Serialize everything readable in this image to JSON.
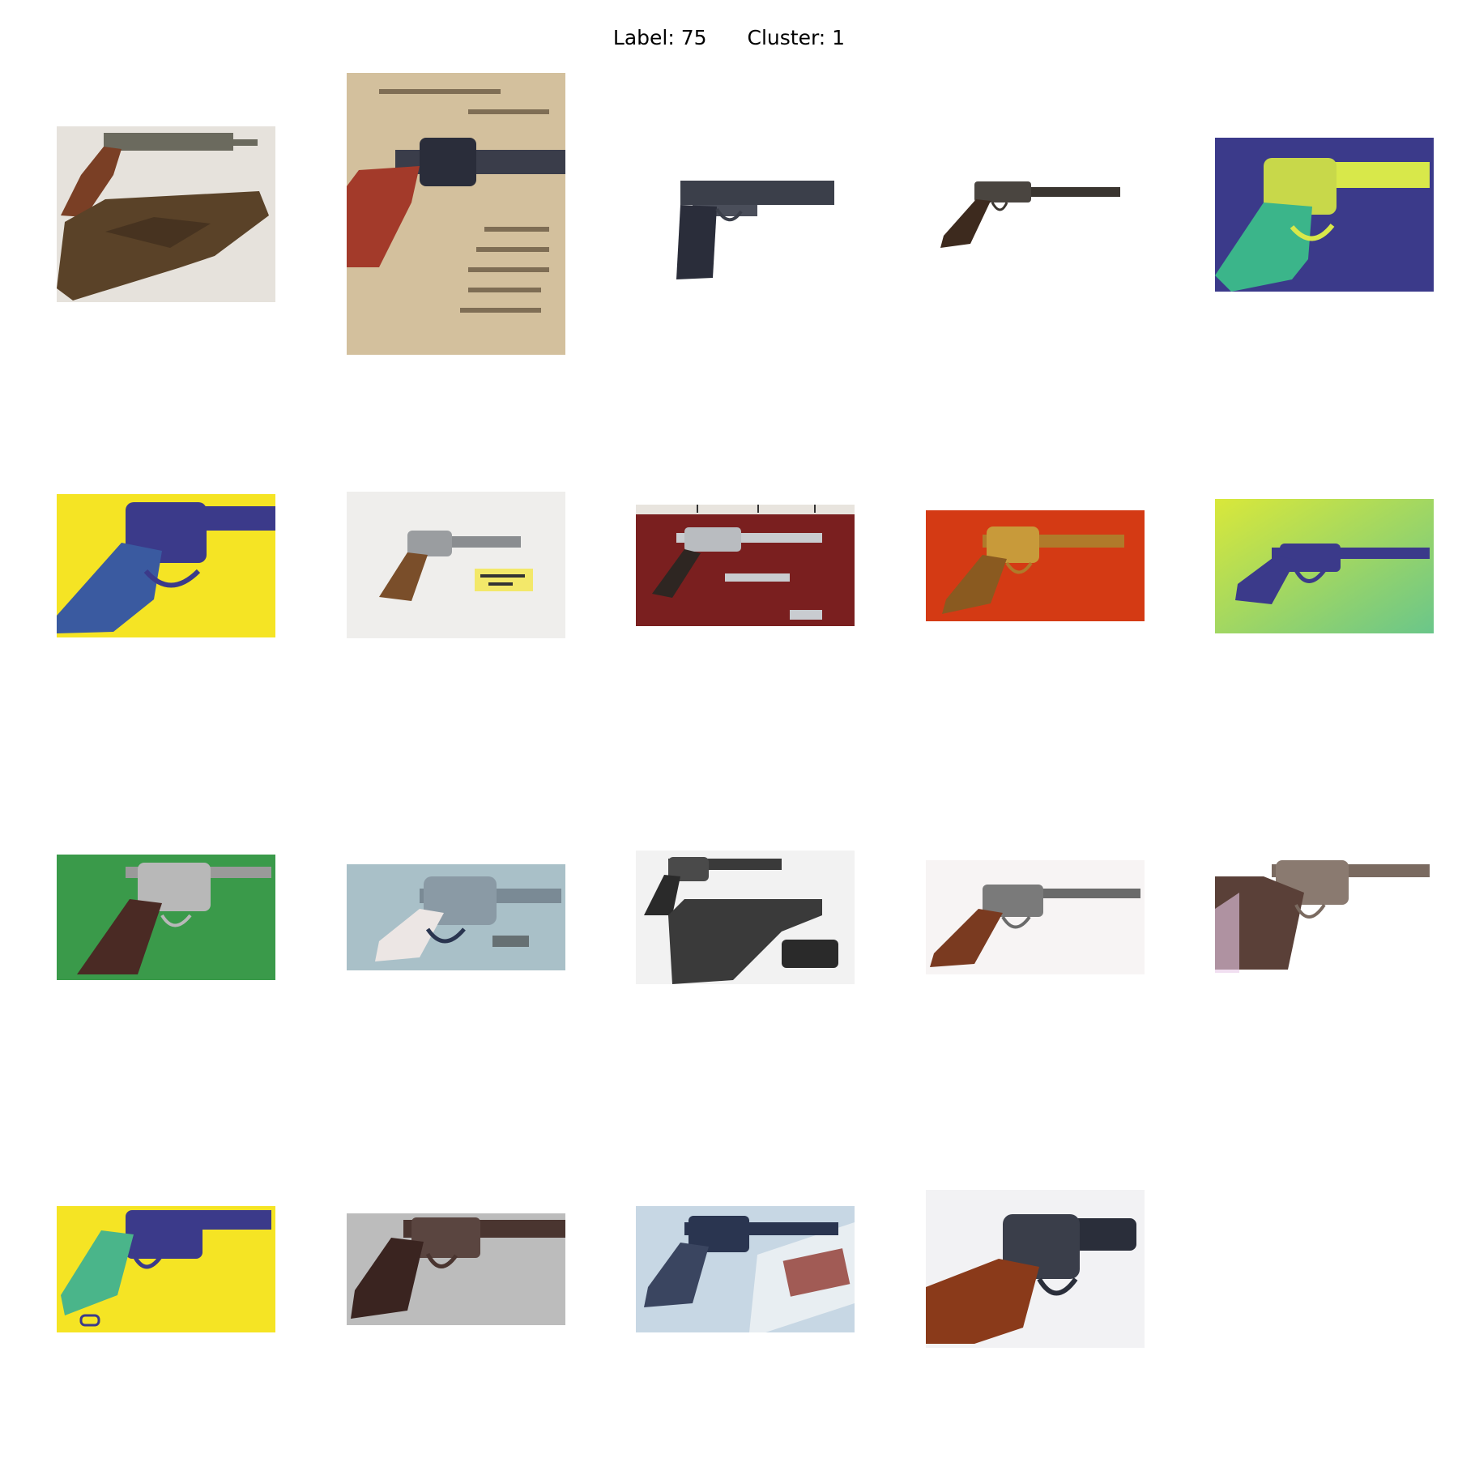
{
  "title": {
    "label_text": "Label: 75",
    "cluster_text": "Cluster: 1"
  },
  "images": [
    {
      "subject": "percussion revolver with leather holster",
      "background": "#e6e2dc",
      "gun_color": "#6b6a5e",
      "grip_color": "#7a3f25"
    },
    {
      "subject": "single action revolver on wooden box with printed label",
      "background": "#d9c8a8",
      "gun_color": "#3a3d4a",
      "grip_color": "#a33a2a"
    },
    {
      "subject": "semi-automatic pistol",
      "background": "#ffffff",
      "gun_color": "#3b3f4a",
      "grip_color": "#2a2d3a"
    },
    {
      "subject": "percussion revolver",
      "background": "#ffffff",
      "gun_color": "#3a3530",
      "grip_color": "#3d2a1e"
    },
    {
      "subject": "revolver, false color",
      "background": "#3b3a8a",
      "gun_color": "#d8e84a",
      "grip_color": "#3bb58a"
    },
    {
      "subject": "revolver, false color",
      "background": "#f5e424",
      "gun_color": "#3b3a8a",
      "grip_color": "#3a5aa0"
    },
    {
      "subject": "pinfire revolver with paper tag",
      "background": "#efeeec",
      "gun_color": "#8a8d90",
      "grip_color": "#7a4e2a"
    },
    {
      "subject": "cased revolver set with ruler",
      "background": "#7a1f1f",
      "gun_color": "#c9ccd0",
      "grip_color": "#2e2622"
    },
    {
      "subject": "brass-framed revolver",
      "background": "#d43a14",
      "gun_color": "#b07a2a",
      "grip_color": "#8a5a20"
    },
    {
      "subject": "percussion revolver, false color",
      "background": "#c7e04a",
      "gun_color": "#3b3a8a",
      "grip_color": "#3b3a8a"
    },
    {
      "subject": "revolver on green background",
      "background": "#3a9a4a",
      "gun_color": "#b8b8b8",
      "grip_color": "#4a2a24"
    },
    {
      "subject": "top-break revolver with pearl grip",
      "background": "#a9c0c8",
      "gun_color": "#7a8a95",
      "grip_color": "#ece6e4"
    },
    {
      "subject": "revolver with holster and pouch",
      "background": "#f2f2f2",
      "gun_color": "#3a3a3a",
      "grip_color": "#2a2a2a"
    },
    {
      "subject": "percussion revolver with wooden grip",
      "background": "#f7f4f4",
      "gun_color": "#6a6a6a",
      "grip_color": "#7a3a20"
    },
    {
      "subject": "engraved revolver",
      "background": "#ffffff",
      "gun_color": "#7a6a60",
      "grip_color": "#5a4038"
    },
    {
      "subject": "engraved revolver, false color",
      "background": "#f5e424",
      "gun_color": "#3b3a8a",
      "grip_color": "#4ab58a"
    },
    {
      "subject": "pocket revolver",
      "background": "#bcbcbc",
      "gun_color": "#4a3530",
      "grip_color": "#3a2420"
    },
    {
      "subject": "single action revolver on box",
      "background": "#c7d7e4",
      "gun_color": "#2a3550",
      "grip_color": "#2a3550"
    },
    {
      "subject": "engraved snub-nose revolver",
      "background": "#f2f2f4",
      "gun_color": "#2a2e3a",
      "grip_color": "#8a3a1a"
    }
  ]
}
